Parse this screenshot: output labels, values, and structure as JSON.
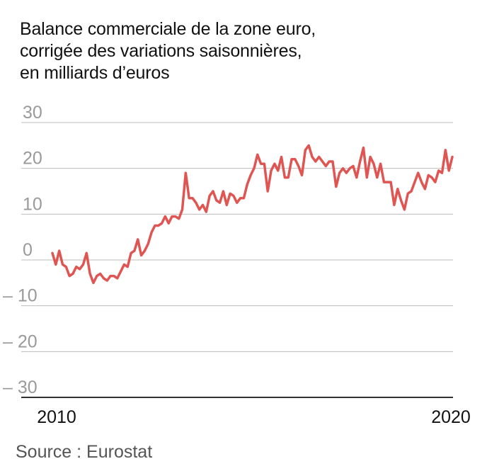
{
  "title_lines": [
    "Balance commerciale de la zone euro,",
    "corrigée des variations saisonnières,",
    "en milliards d’euros"
  ],
  "source": "Source : Eurostat",
  "colors": {
    "line": "#e05552",
    "grid": "#bdbdbd",
    "axis": "#333333",
    "ytick": "#9a9a9a"
  },
  "chart_data": {
    "type": "line",
    "title": "Balance commerciale de la zone euro, corrigée des variations saisonnières, en milliards d’euros",
    "xlabel": "",
    "ylabel": "",
    "ylim": [
      -30,
      30
    ],
    "xlim": [
      2010,
      2020
    ],
    "yticks": [
      30,
      20,
      10,
      0,
      -10,
      -20,
      -30
    ],
    "ytick_labels": [
      "30",
      "20",
      "10",
      "0",
      "– 10",
      "– 20",
      "– 30"
    ],
    "xtick_labels": [
      "2010",
      "2020"
    ],
    "grid": true,
    "legend": "none",
    "series": [
      {
        "values": [
          1.5,
          -1,
          2,
          -1,
          -1.5,
          -3.5,
          -3,
          -1.5,
          -2,
          -1,
          1.5,
          -3,
          -5,
          -3.5,
          -3,
          -4,
          -4.5,
          -3.5,
          -3.5,
          -4,
          -2.5,
          -1,
          -1.5,
          1.5,
          2,
          4.5,
          1,
          2,
          3.5,
          6,
          7.5,
          7.5,
          8,
          9.5,
          8,
          9.5,
          9.5,
          9,
          11,
          19,
          13.5,
          13.5,
          12.5,
          11,
          12,
          10.5,
          14,
          15,
          13,
          12.5,
          15,
          12,
          14.5,
          14,
          12.5,
          13.5,
          13.5,
          16.5,
          18.5,
          20,
          23,
          21,
          21,
          15,
          19.5,
          21,
          19.5,
          22.5,
          18,
          18,
          22,
          22,
          20.5,
          18.5,
          24,
          25,
          22.5,
          21.5,
          22.5,
          21.5,
          20.5,
          21.5,
          21.5,
          16,
          19,
          20,
          19,
          20,
          20.5,
          18,
          21.5,
          24.5,
          18,
          22.5,
          21,
          18,
          21,
          17,
          17,
          17,
          12,
          15.5,
          13,
          11,
          14.5,
          15,
          17,
          19,
          17,
          15.5,
          18.5,
          18,
          17,
          19.5,
          19,
          24,
          19.5,
          22.5
        ]
      }
    ]
  }
}
